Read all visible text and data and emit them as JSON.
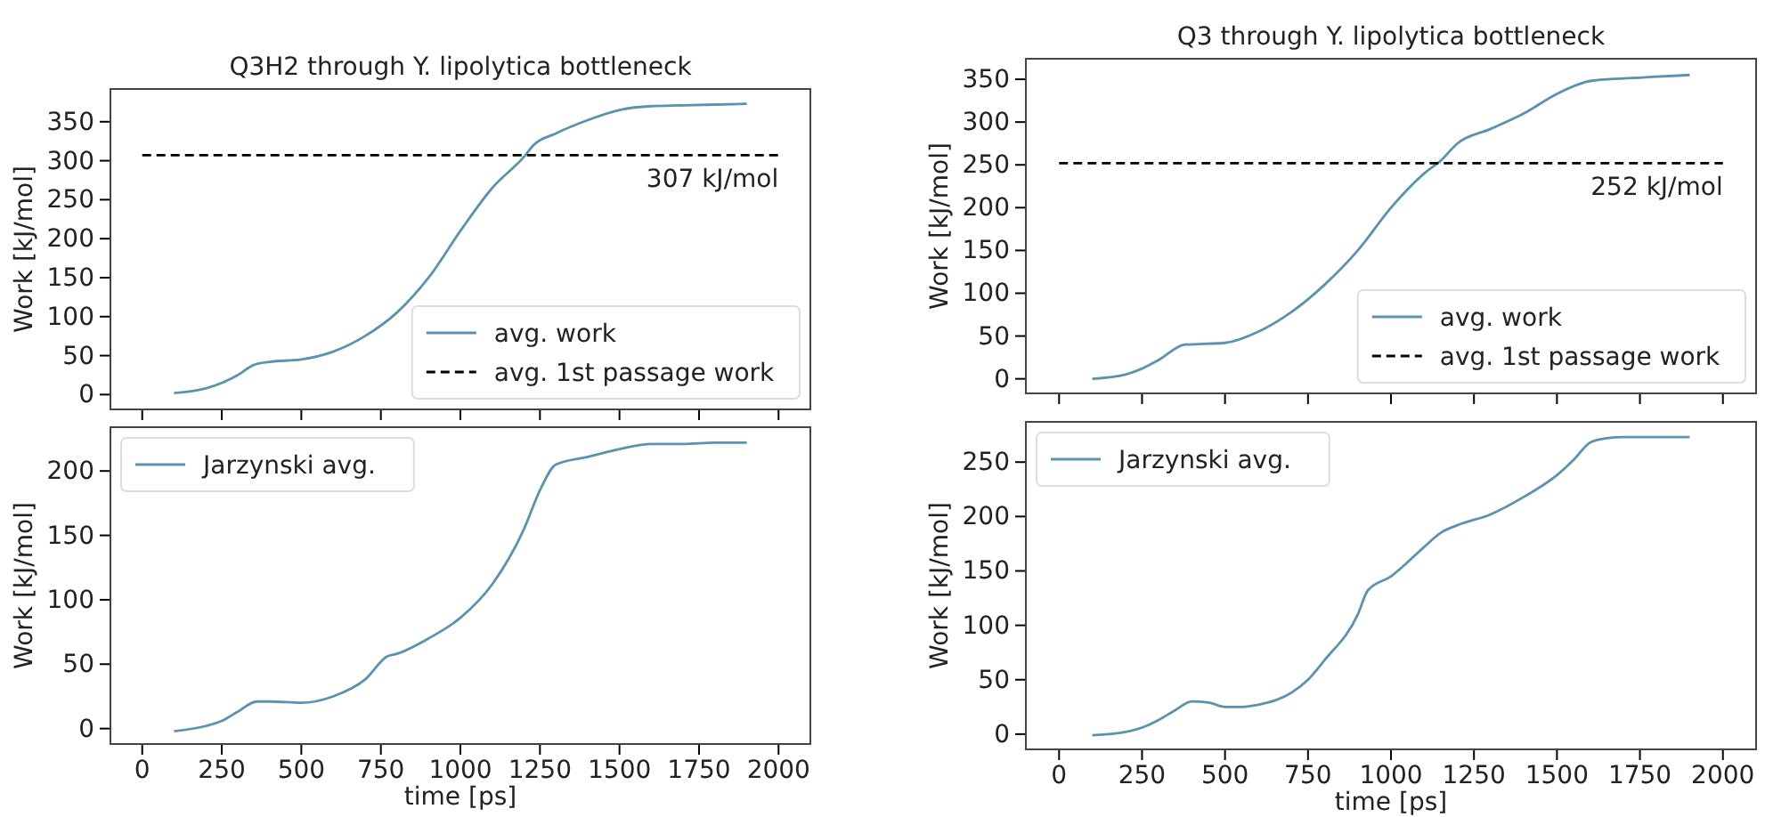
{
  "chart_data": [
    {
      "type": "line",
      "title": "Q3H2 through Y. lipolytica bottleneck",
      "ylabel": "Work [kJ/mol]",
      "xlim": [
        -100,
        2100
      ],
      "xticks": [
        0,
        250,
        500,
        750,
        1000,
        1250,
        1500,
        1750,
        2000
      ],
      "ylim": [
        -19,
        392
      ],
      "yticks": [
        0,
        50,
        100,
        150,
        200,
        250,
        300,
        350
      ],
      "tick_labels": "y",
      "legend": "bottom right",
      "grid": false,
      "series": [
        {
          "name": "avg. work",
          "color": "#5a93b0",
          "x": [
            100,
            200,
            250,
            300,
            350,
            400,
            500,
            600,
            700,
            800,
            900,
            1000,
            1100,
            1200,
            1230,
            1300,
            1400,
            1500,
            1600,
            1700,
            1800,
            1900
          ],
          "values": [
            2,
            8,
            15,
            25,
            38,
            42,
            45,
            55,
            75,
            105,
            150,
            210,
            265,
            305,
            320,
            335,
            352,
            365,
            370,
            371,
            372,
            373
          ]
        },
        {
          "name": "avg. 1st passage work",
          "color": "#000000",
          "line_style": "dashed",
          "x": [
            0,
            2000
          ],
          "values": [
            307,
            307
          ]
        }
      ],
      "annotations": [
        {
          "text": "307 kJ/mol",
          "x": 2000,
          "y": 307
        }
      ]
    },
    {
      "type": "line",
      "title": "Q3 through Y. lipolytica bottleneck",
      "ylabel": "Work [kJ/mol]",
      "xlim": [
        -100,
        2100
      ],
      "xticks": [
        0,
        250,
        500,
        750,
        1000,
        1250,
        1500,
        1750,
        2000
      ],
      "ylim": [
        -17,
        374
      ],
      "yticks": [
        0,
        50,
        100,
        150,
        200,
        250,
        300,
        350
      ],
      "tick_labels": "y",
      "legend": "bottom right",
      "grid": false,
      "series": [
        {
          "name": "avg. work",
          "color": "#5a93b0",
          "x": [
            100,
            200,
            250,
            300,
            380,
            450,
            500,
            600,
            700,
            800,
            900,
            1000,
            1100,
            1150,
            1200,
            1300,
            1400,
            1500,
            1600,
            1700,
            1800,
            1900
          ],
          "values": [
            0,
            5,
            12,
            22,
            40,
            41,
            42,
            55,
            78,
            110,
            150,
            200,
            240,
            255,
            275,
            292,
            310,
            333,
            348,
            351,
            353,
            355
          ]
        },
        {
          "name": "avg. 1st passage work",
          "color": "#000000",
          "line_style": "dashed",
          "x": [
            0,
            2000
          ],
          "values": [
            252,
            252
          ]
        }
      ],
      "annotations": [
        {
          "text": "252 kJ/mol",
          "x": 2000,
          "y": 252
        }
      ]
    },
    {
      "type": "line",
      "xlabel": "time [ps]",
      "ylabel": "Work [kJ/mol]",
      "xlim": [
        -100,
        2100
      ],
      "xticks": [
        0,
        250,
        500,
        750,
        1000,
        1250,
        1500,
        1750,
        2000
      ],
      "ylim": [
        -12,
        234
      ],
      "yticks": [
        0,
        50,
        100,
        150,
        200
      ],
      "legend": "top left",
      "grid": false,
      "series": [
        {
          "name": "Jarzynski avg.",
          "color": "#5a93b0",
          "x": [
            100,
            200,
            250,
            300,
            360,
            400,
            500,
            600,
            700,
            770,
            800,
            900,
            1000,
            1100,
            1200,
            1250,
            1300,
            1400,
            1500,
            1600,
            1700,
            1800,
            1900
          ],
          "values": [
            -2,
            2,
            6,
            13,
            21,
            21,
            20,
            25,
            38,
            56,
            58,
            70,
            86,
            112,
            155,
            185,
            205,
            211,
            217,
            221,
            221,
            222,
            222
          ]
        }
      ]
    },
    {
      "type": "line",
      "xlabel": "time [ps]",
      "ylabel": "Work [kJ/mol]",
      "xlim": [
        -100,
        2100
      ],
      "xticks": [
        0,
        250,
        500,
        750,
        1000,
        1250,
        1500,
        1750,
        2000
      ],
      "ylim": [
        -14,
        287
      ],
      "yticks": [
        0,
        50,
        100,
        150,
        200,
        250
      ],
      "legend": "top left",
      "grid": false,
      "series": [
        {
          "name": "Jarzynski avg.",
          "color": "#5a93b0",
          "x": [
            100,
            200,
            250,
            300,
            350,
            400,
            450,
            500,
            550,
            600,
            700,
            750,
            800,
            900,
            930,
            1000,
            1100,
            1150,
            1200,
            1300,
            1400,
            1500,
            1550,
            1600,
            1650,
            1700,
            1900
          ],
          "values": [
            -1,
            2,
            6,
            13,
            22,
            30,
            29,
            25,
            25,
            27,
            38,
            50,
            68,
            110,
            132,
            145,
            172,
            185,
            192,
            202,
            218,
            238,
            252,
            268,
            272,
            273,
            273
          ]
        }
      ]
    }
  ]
}
